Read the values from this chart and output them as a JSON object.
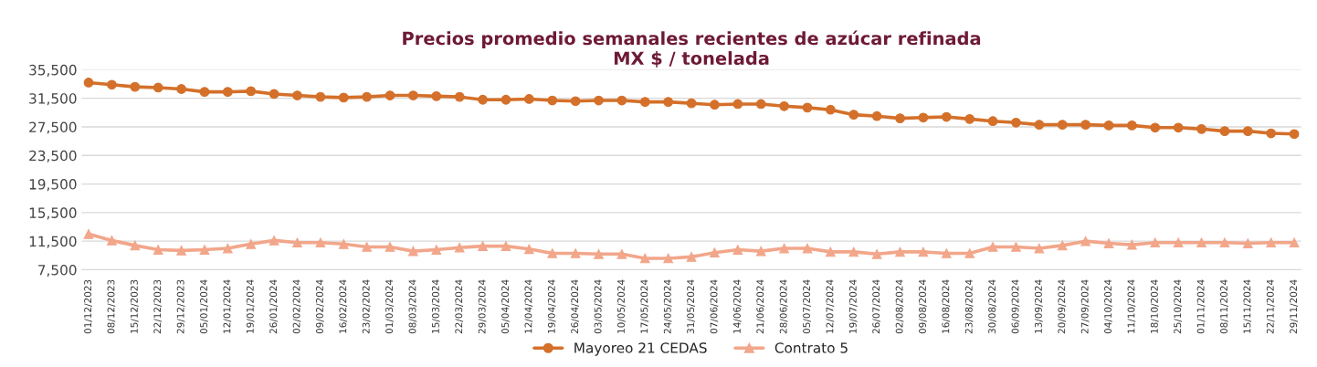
{
  "chart_data": {
    "type": "line",
    "title": "Precios promedio semanales recientes de azúcar refinada\nMX $ / tonelada",
    "categories": [
      "01/12/2023",
      "08/12/2023",
      "15/12/2023",
      "22/12/2023",
      "29/12/2023",
      "05/01/2024",
      "12/01/2024",
      "19/01/2024",
      "26/01/2024",
      "02/02/2024",
      "09/02/2024",
      "16/02/2024",
      "23/02/2024",
      "01/03/2024",
      "08/03/2024",
      "15/03/2024",
      "22/03/2024",
      "29/03/2024",
      "05/04/2024",
      "12/04/2024",
      "19/04/2024",
      "26/04/2024",
      "03/05/2024",
      "10/05/2024",
      "17/05/2024",
      "24/05/2024",
      "31/05/2024",
      "07/06/2024",
      "14/06/2024",
      "21/06/2024",
      "28/06/2024",
      "05/07/2024",
      "12/07/2024",
      "19/07/2024",
      "26/07/2024",
      "02/08/2024",
      "09/08/2024",
      "16/08/2024",
      "23/08/2024",
      "30/08/2024",
      "06/09/2024",
      "13/09/2024",
      "20/09/2024",
      "27/09/2024",
      "04/10/2024",
      "11/10/2024",
      "18/10/2024",
      "25/10/2024",
      "01/11/2024",
      "08/11/2024",
      "15/11/2024",
      "22/11/2024",
      "29/11/2024"
    ],
    "series": [
      {
        "name": "Mayoreo 21 CEDAS",
        "color": "#d4702a",
        "marker": "circle",
        "values": [
          33700,
          33400,
          33100,
          33000,
          32800,
          32400,
          32400,
          32500,
          32100,
          31900,
          31700,
          31600,
          31700,
          31900,
          31900,
          31800,
          31700,
          31300,
          31300,
          31400,
          31200,
          31100,
          31200,
          31200,
          31000,
          31000,
          30800,
          30600,
          30700,
          30700,
          30400,
          30200,
          29900,
          29200,
          29000,
          28700,
          28800,
          28900,
          28600,
          28300,
          28100,
          27800,
          27800,
          27800,
          27700,
          27700,
          27400,
          27400,
          27200,
          26900,
          26900,
          26600,
          26500
        ]
      },
      {
        "name": "Contrato 5",
        "color": "#f2a68a",
        "marker": "triangle",
        "values": [
          12500,
          11600,
          10900,
          10300,
          10200,
          10300,
          10500,
          11100,
          11600,
          11300,
          11300,
          11100,
          10700,
          10700,
          10100,
          10300,
          10600,
          10800,
          10800,
          10400,
          9800,
          9800,
          9700,
          9700,
          9100,
          9100,
          9300,
          9900,
          10300,
          10100,
          10500,
          10500,
          10000,
          10000,
          9700,
          10000,
          10000,
          9800,
          9800,
          10700,
          10700,
          10500,
          10900,
          11500,
          11200,
          11000,
          11300,
          11300,
          11300,
          11300,
          11200,
          11300,
          11300
        ]
      }
    ],
    "ylim": [
      7500,
      35500
    ],
    "yticks": [
      {
        "value": 7500,
        "label": "7,500"
      },
      {
        "value": 11500,
        "label": "11,500"
      },
      {
        "value": 15500,
        "label": "15,500"
      },
      {
        "value": 19500,
        "label": "19,500"
      },
      {
        "value": 23500,
        "label": "23,500"
      },
      {
        "value": 27500,
        "label": "27,500"
      },
      {
        "value": 31500,
        "label": "31,500"
      },
      {
        "value": 35500,
        "label": "35,500"
      }
    ],
    "grid": "y",
    "legend": "bottom"
  }
}
